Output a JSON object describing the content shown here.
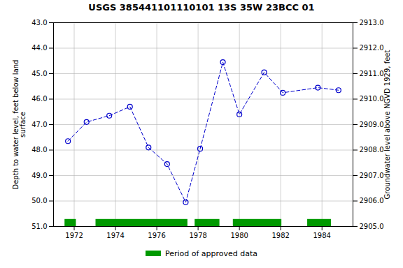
{
  "chart_data": {
    "type": "line",
    "title": "USGS 385441101110101 13S 35W 23BCC 01",
    "ylabel": "Depth to water level, feet below land\nsurface",
    "y2label": "Groundwater level above NGVD 1929, feet",
    "x": [
      1971.7,
      1972.6,
      1973.7,
      1974.7,
      1975.6,
      1976.5,
      1977.4,
      1978.1,
      1979.2,
      1980.0,
      1981.2,
      1982.1,
      1983.8,
      1984.8
    ],
    "series": [
      {
        "values": [
          47.65,
          46.9,
          46.65,
          46.3,
          47.9,
          48.55,
          50.05,
          47.95,
          44.55,
          46.6,
          44.95,
          45.75,
          45.55,
          45.65
        ],
        "color": "#0000cc",
        "marker": "circle",
        "line_style": "dashed"
      }
    ],
    "periods": {
      "name": "Period of approved data",
      "color": "#009900",
      "ranges": [
        [
          1971.55,
          1972.1
        ],
        [
          1973.05,
          1977.5
        ],
        [
          1977.85,
          1979.05
        ],
        [
          1979.7,
          1982.05
        ],
        [
          1983.3,
          1984.45
        ]
      ],
      "y": 51.0,
      "height": 0.28
    },
    "xlim": [
      1971.0,
      1985.5
    ],
    "xticks": [
      1972,
      1974,
      1976,
      1978,
      1980,
      1982,
      1984
    ],
    "ylim": [
      51.0,
      43.0
    ],
    "yticks": [
      {
        "value": 43.0,
        "label": "43.0"
      },
      {
        "value": 44.0,
        "label": "44.0"
      },
      {
        "value": 45.0,
        "label": "45.0"
      },
      {
        "value": 46.0,
        "label": "46.0"
      },
      {
        "value": 47.0,
        "label": "47.0"
      },
      {
        "value": 48.0,
        "label": "48.0"
      },
      {
        "value": 49.0,
        "label": "49.0"
      },
      {
        "value": 50.0,
        "label": "50.0"
      },
      {
        "value": 51.0,
        "label": "51.0"
      }
    ],
    "y2lim": [
      2905.0,
      2913.0
    ],
    "y2ticks": [
      {
        "value": 2913.0,
        "label": "2913.0"
      },
      {
        "value": 2912.0,
        "label": "2912.0"
      },
      {
        "value": 2911.0,
        "label": "2911.0"
      },
      {
        "value": 2910.0,
        "label": "2910.0"
      },
      {
        "value": 2909.0,
        "label": "2909.0"
      },
      {
        "value": 2908.0,
        "label": "2908.0"
      },
      {
        "value": 2907.0,
        "label": "2907.0"
      },
      {
        "value": 2906.0,
        "label": "2906.0"
      },
      {
        "value": 2905.0,
        "label": "2905.0"
      }
    ],
    "grid": true,
    "legend": "bottom"
  }
}
